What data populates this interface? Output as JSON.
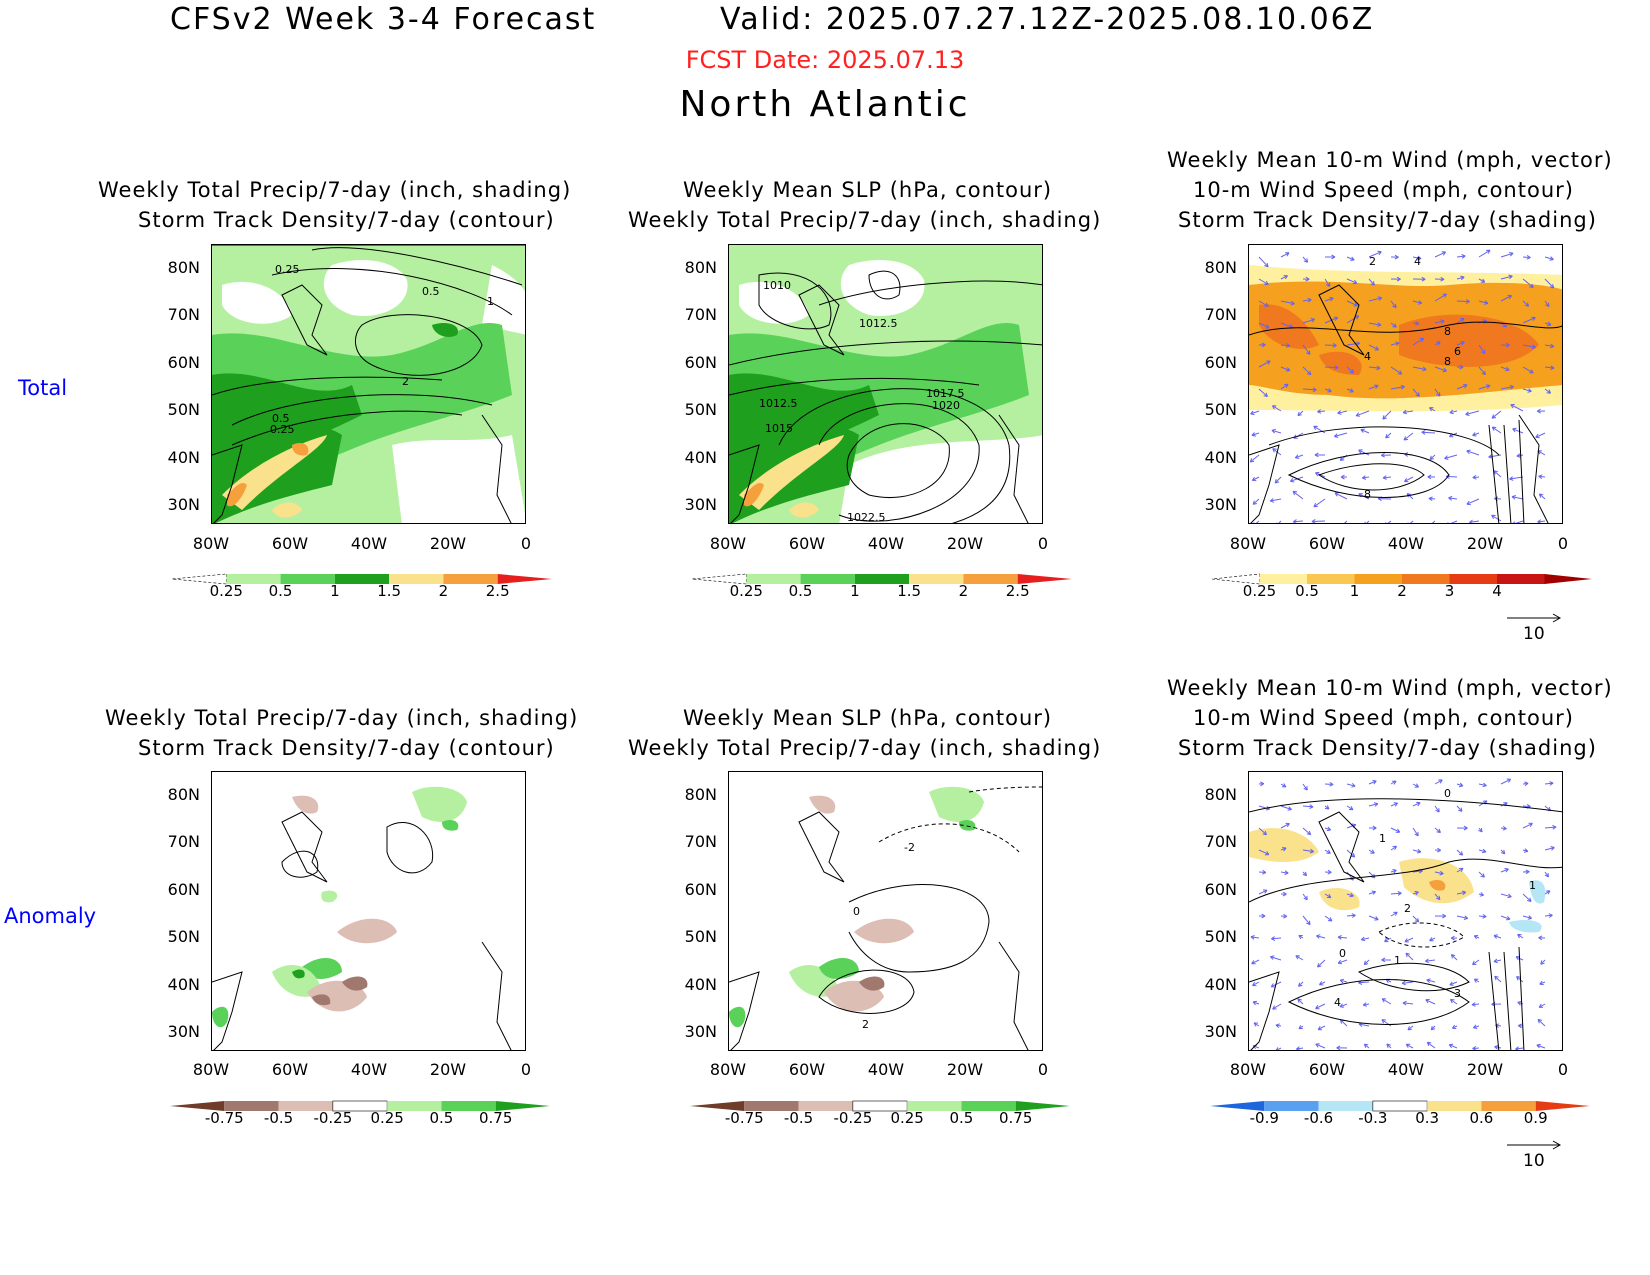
{
  "header": {
    "model": "CFSv2 Week 3-4 Forecast",
    "valid": "Valid: 2025.07.27.12Z-2025.08.10.06Z",
    "fcst_date": "FCST Date: 2025.07.13",
    "region": "North Atlantic"
  },
  "rows": [
    {
      "label": "Total"
    },
    {
      "label": "Anomaly"
    }
  ],
  "panel_titles": {
    "precip": [
      "Weekly Total Precip/7-day (inch, shading)",
      "Storm Track Density/7-day (contour)"
    ],
    "slp": [
      "Weekly Mean SLP (hPa, contour)",
      "Weekly Total Precip/7-day (inch, shading)"
    ],
    "wind": [
      "Weekly Mean 10-m Wind (mph, vector)",
      "10-m Wind Speed (mph, contour)",
      "Storm Track Density/7-day (shading)"
    ]
  },
  "axes": {
    "lat_ticks": [
      "80N",
      "70N",
      "60N",
      "50N",
      "40N",
      "30N"
    ],
    "lon_ticks": [
      "80W",
      "60W",
      "40W",
      "20W",
      "0"
    ]
  },
  "colorbars": {
    "precip_total": {
      "labels": [
        "0.25",
        "0.5",
        "1",
        "1.5",
        "2",
        "2.5"
      ],
      "colors": [
        "#ffffff",
        "#b4f0a0",
        "#5ad25a",
        "#1ea01e",
        "#fae18c",
        "#f5a03c",
        "#e61e1e"
      ]
    },
    "std_total": {
      "labels": [
        "0.25",
        "0.5",
        "1",
        "2",
        "3",
        "4"
      ],
      "colors": [
        "#ffffff",
        "#fff0a0",
        "#fac850",
        "#f5a01e",
        "#f0781e",
        "#e63c14",
        "#c81414",
        "#a00000"
      ]
    },
    "precip_anom": {
      "labels": [
        "-0.75",
        "-0.5",
        "-0.25",
        "0.25",
        "0.5",
        "0.75"
      ],
      "colors": [
        "#6e3c28",
        "#a0786e",
        "#dcbeb4",
        "#ffffff",
        "#b4f0a0",
        "#5ad25a",
        "#1ea01e"
      ]
    },
    "std_anom": {
      "labels": [
        "-0.9",
        "-0.6",
        "-0.3",
        "0.3",
        "0.6",
        "0.9"
      ],
      "colors": [
        "#1e64dc",
        "#5aa0f0",
        "#b4e6f5",
        "#ffffff",
        "#fae18c",
        "#f5a03c",
        "#e63c14"
      ]
    }
  },
  "contour_labels": {
    "precip_total": [
      "0.25",
      "0.5",
      "1",
      "2",
      "0.5",
      "0.25"
    ],
    "slp_total": [
      "1010",
      "1012.5",
      "1017.5",
      "1020",
      "1012.5",
      "1015",
      "1022.5"
    ],
    "wind_total": [
      "2",
      "4",
      "8",
      "6",
      "8",
      "4",
      "8"
    ],
    "slp_anom": [
      "-2",
      "0",
      "2"
    ],
    "wind_anom": [
      "0",
      "1",
      "2",
      "0",
      "1",
      "3",
      "4",
      "1"
    ]
  },
  "vector_reference": "10",
  "colors": {
    "fcst_date": "#ff2020",
    "row_label": "#0000ff",
    "wind_vector": "#6464f0"
  }
}
